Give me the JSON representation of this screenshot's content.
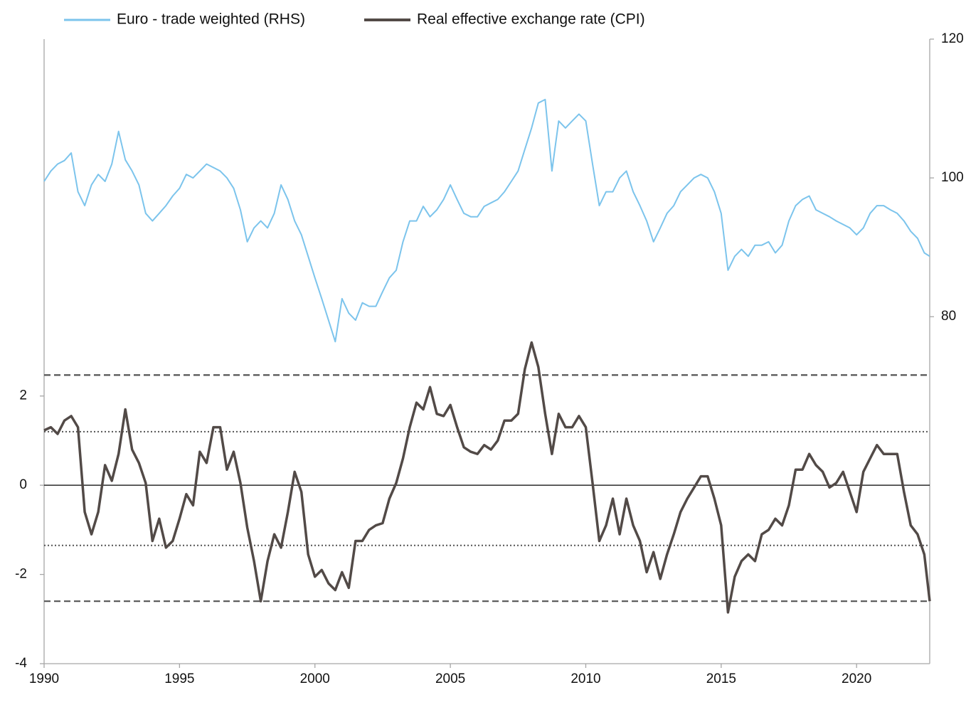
{
  "chart_data": {
    "type": "line",
    "x": [
      1990,
      1990.25,
      1990.5,
      1990.75,
      1991,
      1991.25,
      1991.5,
      1991.75,
      1992,
      1992.25,
      1992.5,
      1992.75,
      1993,
      1993.25,
      1993.5,
      1993.75,
      1994,
      1994.25,
      1994.5,
      1994.75,
      1995,
      1995.25,
      1995.5,
      1995.75,
      1996,
      1996.25,
      1996.5,
      1996.75,
      1997,
      1997.25,
      1997.5,
      1997.75,
      1998,
      1998.25,
      1998.5,
      1998.75,
      1999,
      1999.25,
      1999.5,
      1999.75,
      2000,
      2000.25,
      2000.5,
      2000.75,
      2001,
      2001.25,
      2001.5,
      2001.75,
      2002,
      2002.25,
      2002.5,
      2002.75,
      2003,
      2003.25,
      2003.5,
      2003.75,
      2004,
      2004.25,
      2004.5,
      2004.75,
      2005,
      2005.25,
      2005.5,
      2005.75,
      2006,
      2006.25,
      2006.5,
      2006.75,
      2007,
      2007.25,
      2007.5,
      2007.75,
      2008,
      2008.25,
      2008.5,
      2008.75,
      2009,
      2009.25,
      2009.5,
      2009.75,
      2010,
      2010.25,
      2010.5,
      2010.75,
      2011,
      2011.25,
      2011.5,
      2011.75,
      2012,
      2012.25,
      2012.5,
      2012.75,
      2013,
      2013.25,
      2013.5,
      2013.75,
      2014,
      2014.25,
      2014.5,
      2014.75,
      2015,
      2015.25,
      2015.5,
      2015.75,
      2016,
      2016.25,
      2016.5,
      2016.75,
      2017,
      2017.25,
      2017.5,
      2017.75,
      2018,
      2018.25,
      2018.5,
      2018.75,
      2019,
      2019.25,
      2019.5,
      2019.75,
      2020,
      2020.25,
      2020.5,
      2020.75,
      2021,
      2021.25,
      2021.5,
      2021.75,
      2022,
      2022.25,
      2022.5,
      2022.7
    ],
    "series": [
      {
        "name": "Euro - trade weighted (RHS)",
        "color": "#7cc4ec",
        "axis": "y2",
        "values": [
          99.5,
          101,
          102,
          102.5,
          103.6,
          98,
          96,
          99,
          100.5,
          99.5,
          102,
          106.7,
          102.6,
          101,
          99,
          94.9,
          93.8,
          94.9,
          96,
          97.4,
          98.5,
          100.5,
          100,
          101,
          102,
          101.5,
          101,
          100,
          98.5,
          95.4,
          90.8,
          92.8,
          93.8,
          92.8,
          94.9,
          99,
          96.9,
          93.8,
          91.8,
          88.7,
          85.6,
          82.6,
          79.5,
          76.4,
          82.6,
          80.5,
          79.5,
          82,
          81.5,
          81.5,
          83.6,
          85.6,
          86.7,
          90.8,
          93.8,
          93.8,
          95.9,
          94.4,
          95.4,
          96.9,
          99,
          96.9,
          94.9,
          94.4,
          94.4,
          95.9,
          96.4,
          96.9,
          98,
          99.5,
          101,
          104.1,
          107.2,
          110.8,
          111.3,
          101,
          108.2,
          107.2,
          108.2,
          109.2,
          108.2,
          102,
          96,
          98,
          98,
          100,
          101,
          98,
          96,
          93.8,
          90.8,
          92.8,
          94.9,
          96,
          98,
          99,
          100,
          100.5,
          100,
          98,
          94.9,
          86.7,
          88.7,
          89.7,
          88.7,
          90.3,
          90.3,
          90.8,
          89.2,
          90.3,
          93.8,
          96,
          96.9,
          97.4,
          95.4,
          94.9,
          94.4,
          93.8,
          93.3,
          92.8,
          91.8,
          92.8,
          94.9,
          96,
          96,
          95.4,
          94.9,
          93.8,
          92.3,
          91.3,
          89.2,
          88.7
        ]
      },
      {
        "name": "Real effective exchange rate (CPI)",
        "color": "#524a47",
        "values": [
          1.23,
          1.3,
          1.15,
          1.45,
          1.55,
          1.3,
          -0.6,
          -1.1,
          -0.6,
          0.45,
          0.1,
          0.7,
          1.7,
          0.8,
          0.5,
          0.05,
          -1.25,
          -0.75,
          -1.4,
          -1.25,
          -0.75,
          -0.2,
          -0.45,
          0.75,
          0.5,
          1.3,
          1.3,
          0.35,
          0.75,
          0.05,
          -0.95,
          -1.7,
          -2.6,
          -1.7,
          -1.1,
          -1.4,
          -0.6,
          0.3,
          -0.15,
          -1.55,
          -2.05,
          -1.9,
          -2.2,
          -2.35,
          -1.95,
          -2.3,
          -1.25,
          -1.25,
          -1.0,
          -0.9,
          -0.85,
          -0.3,
          0.05,
          0.6,
          1.3,
          1.85,
          1.7,
          2.2,
          1.6,
          1.55,
          1.8,
          1.3,
          0.85,
          0.75,
          0.7,
          0.9,
          0.8,
          1.0,
          1.45,
          1.45,
          1.6,
          2.6,
          3.2,
          2.65,
          1.6,
          0.7,
          1.6,
          1.3,
          1.3,
          1.55,
          1.3,
          0.05,
          -1.25,
          -0.9,
          -0.3,
          -1.1,
          -0.3,
          -0.9,
          -1.25,
          -1.95,
          -1.5,
          -2.1,
          -1.55,
          -1.1,
          -0.6,
          -0.3,
          -0.05,
          0.2,
          0.2,
          -0.3,
          -0.9,
          -2.85,
          -2.05,
          -1.7,
          -1.55,
          -1.7,
          -1.1,
          -1.0,
          -0.75,
          -0.9,
          -0.45,
          0.35,
          0.35,
          0.7,
          0.45,
          0.3,
          -0.05,
          0.05,
          0.3,
          -0.15,
          -0.6,
          0.3,
          0.6,
          0.9,
          0.7,
          0.7,
          0.7,
          -0.15,
          -0.9,
          -1.1,
          -1.55,
          -2.6
        ]
      }
    ],
    "xlim": [
      1990,
      2022.7
    ],
    "xticks": [
      1990,
      1995,
      2000,
      2005,
      2010,
      2015,
      2020
    ],
    "ylim": [
      -4,
      10
    ],
    "yticks": [
      -4,
      -2,
      0,
      2
    ],
    "y2lim": [
      30,
      120
    ],
    "y2ticks": [
      80,
      100,
      120
    ],
    "reference_lines": [
      {
        "value": 2.47,
        "style": "dashed"
      },
      {
        "value": 1.2,
        "style": "dotted"
      },
      {
        "value": -1.35,
        "style": "dotted"
      },
      {
        "value": -2.6,
        "style": "dashed"
      }
    ],
    "zero_line": true,
    "legend": "top"
  }
}
